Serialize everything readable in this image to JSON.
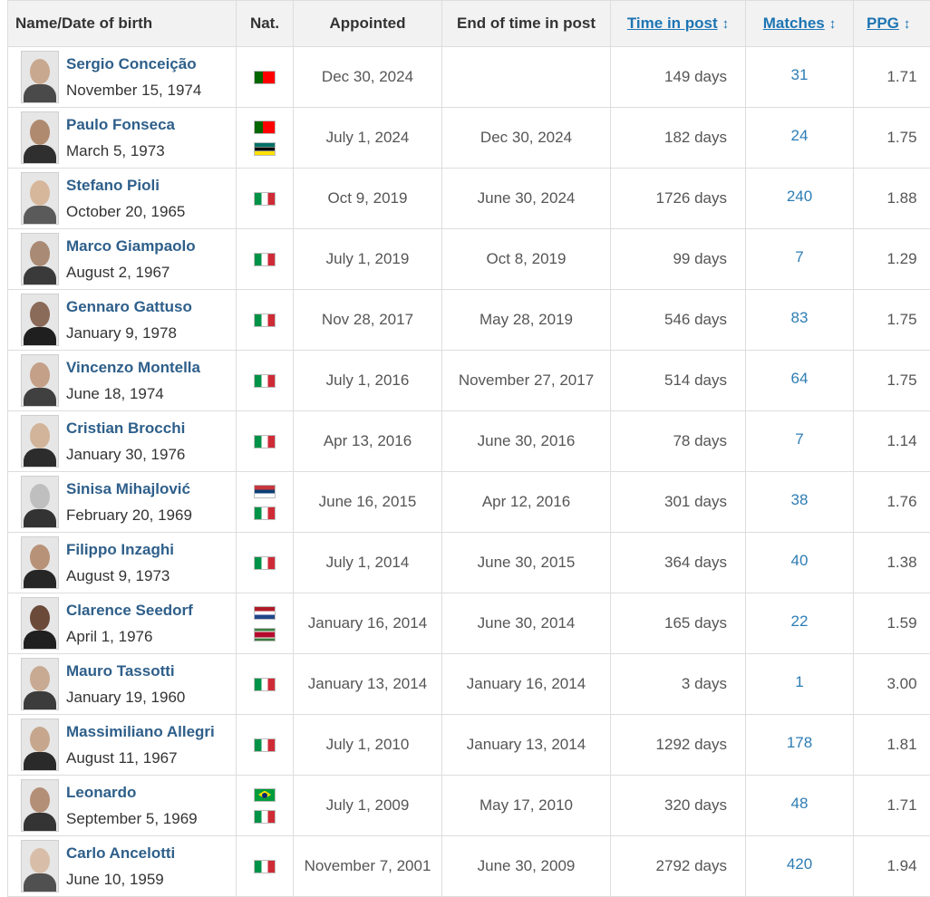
{
  "table": {
    "headers": {
      "name": "Name/Date of birth",
      "nat": "Nat.",
      "appointed": "Appointed",
      "end": "End of time in post",
      "time": "Time in post",
      "matches": "Matches",
      "ppg": "PPG",
      "sort_icon": "↕"
    },
    "rows": [
      {
        "name": "Sergio Conceição",
        "dob": "November 15, 1974",
        "nat": [
          "portugal"
        ],
        "appointed": "Dec 30, 2024",
        "end": "",
        "time": "149 days",
        "matches": "31",
        "ppg": "1.71"
      },
      {
        "name": "Paulo Fonseca",
        "dob": "March 5, 1973",
        "nat": [
          "portugal",
          "mozambique"
        ],
        "appointed": "July 1, 2024",
        "end": "Dec 30, 2024",
        "time": "182 days",
        "matches": "24",
        "ppg": "1.75"
      },
      {
        "name": "Stefano Pioli",
        "dob": "October 20, 1965",
        "nat": [
          "italy"
        ],
        "appointed": "Oct 9, 2019",
        "end": "June 30, 2024",
        "time": "1726 days",
        "matches": "240",
        "ppg": "1.88"
      },
      {
        "name": "Marco Giampaolo",
        "dob": "August 2, 1967",
        "nat": [
          "italy"
        ],
        "appointed": "July 1, 2019",
        "end": "Oct 8, 2019",
        "time": "99 days",
        "matches": "7",
        "ppg": "1.29"
      },
      {
        "name": "Gennaro Gattuso",
        "dob": "January 9, 1978",
        "nat": [
          "italy"
        ],
        "appointed": "Nov 28, 2017",
        "end": "May 28, 2019",
        "time": "546 days",
        "matches": "83",
        "ppg": "1.75"
      },
      {
        "name": "Vincenzo Montella",
        "dob": "June 18, 1974",
        "nat": [
          "italy"
        ],
        "appointed": "July 1, 2016",
        "end": "November 27, 2017",
        "time": "514 days",
        "matches": "64",
        "ppg": "1.75"
      },
      {
        "name": "Cristian Brocchi",
        "dob": "January 30, 1976",
        "nat": [
          "italy"
        ],
        "appointed": "Apr 13, 2016",
        "end": "June 30, 2016",
        "time": "78 days",
        "matches": "7",
        "ppg": "1.14"
      },
      {
        "name": "Sinisa Mihajlović",
        "dob": "February 20, 1969",
        "nat": [
          "serbia",
          "italy"
        ],
        "appointed": "June 16, 2015",
        "end": "Apr 12, 2016",
        "time": "301 days",
        "matches": "38",
        "ppg": "1.76"
      },
      {
        "name": "Filippo Inzaghi",
        "dob": "August 9, 1973",
        "nat": [
          "italy"
        ],
        "appointed": "July 1, 2014",
        "end": "June 30, 2015",
        "time": "364 days",
        "matches": "40",
        "ppg": "1.38"
      },
      {
        "name": "Clarence Seedorf",
        "dob": "April 1, 1976",
        "nat": [
          "netherlands",
          "suriname"
        ],
        "appointed": "January 16, 2014",
        "end": "June 30, 2014",
        "time": "165 days",
        "matches": "22",
        "ppg": "1.59"
      },
      {
        "name": "Mauro Tassotti",
        "dob": "January 19, 1960",
        "nat": [
          "italy"
        ],
        "appointed": "January 13, 2014",
        "end": "January 16, 2014",
        "time": "3 days",
        "matches": "1",
        "ppg": "3.00"
      },
      {
        "name": "Massimiliano Allegri",
        "dob": "August 11, 1967",
        "nat": [
          "italy"
        ],
        "appointed": "July 1, 2010",
        "end": "January 13, 2014",
        "time": "1292 days",
        "matches": "178",
        "ppg": "1.81"
      },
      {
        "name": "Leonardo",
        "dob": "September 5, 1969",
        "nat": [
          "brazil",
          "italy"
        ],
        "appointed": "July 1, 2009",
        "end": "May 17, 2010",
        "time": "320 days",
        "matches": "48",
        "ppg": "1.71"
      },
      {
        "name": "Carlo Ancelotti",
        "dob": "June 10, 1959",
        "nat": [
          "italy"
        ],
        "appointed": "November 7, 2001",
        "end": "June 30, 2009",
        "time": "2792 days",
        "matches": "420",
        "ppg": "1.94"
      }
    ]
  }
}
